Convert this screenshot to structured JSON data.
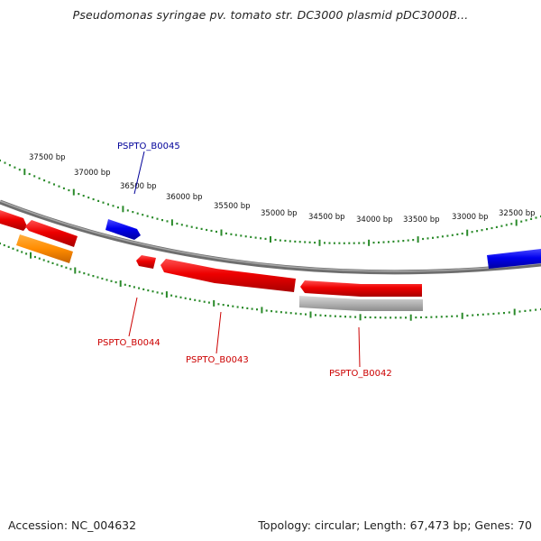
{
  "title": "Pseudomonas syringae pv. tomato str. DC3000 plasmid pDC3000B...",
  "footer": {
    "accession": "Accession: NC_004632",
    "summary": "Topology: circular; Length: 67,473 bp; Genes: 70"
  },
  "colors": {
    "forward_cds": "#0000ee",
    "reverse_cds": "#ee0000",
    "other_feature": "#ff8c00",
    "pseudo_feature": "#b4b4b4",
    "backbone": "#808080",
    "tick": "#2a8a2a",
    "label_forward": "#000099",
    "label_reverse": "#cc0000"
  },
  "map": {
    "position_labels": [
      "37500 bp",
      "37000 bp",
      "36500 bp",
      "36000 bp",
      "35500 bp",
      "35000 bp",
      "34500 bp",
      "34000 bp",
      "33500 bp",
      "33000 bp",
      "32500 bp"
    ],
    "features": [
      {
        "id": "feat-left-top",
        "strand": "reverse",
        "type": "cds"
      },
      {
        "id": "feat-left-mid",
        "strand": "reverse",
        "type": "cds"
      },
      {
        "id": "feat-orange",
        "strand": "reverse",
        "type": "other"
      },
      {
        "id": "feat-b0045",
        "strand": "forward",
        "type": "cds"
      },
      {
        "id": "feat-b0044",
        "strand": "reverse",
        "type": "cds"
      },
      {
        "id": "feat-b0043",
        "strand": "reverse",
        "type": "cds"
      },
      {
        "id": "feat-b0042",
        "strand": "reverse",
        "type": "cds"
      },
      {
        "id": "feat-grey",
        "strand": "reverse",
        "type": "pseudo"
      },
      {
        "id": "feat-right-blue",
        "strand": "forward",
        "type": "cds"
      }
    ],
    "gene_labels": [
      {
        "text": "PSPTO_B0045",
        "strand": "forward"
      },
      {
        "text": "PSPTO_B0044",
        "strand": "reverse"
      },
      {
        "text": "PSPTO_B0043",
        "strand": "reverse"
      },
      {
        "text": "PSPTO_B0042",
        "strand": "reverse"
      }
    ]
  }
}
